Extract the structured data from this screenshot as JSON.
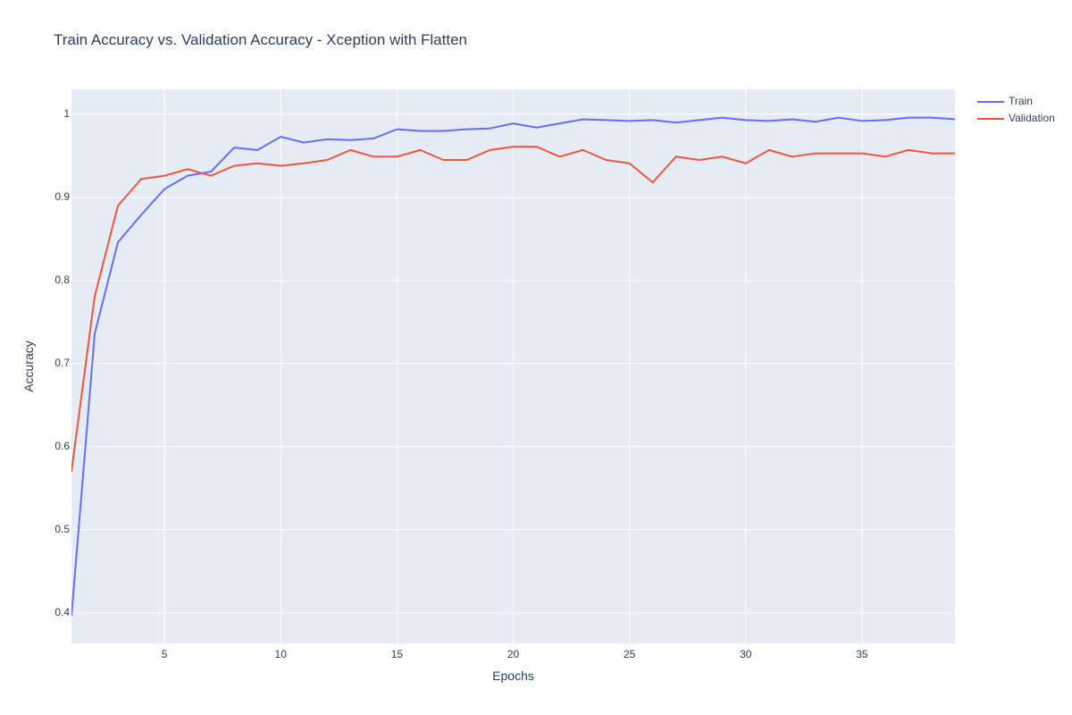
{
  "chart_data": {
    "type": "line",
    "title": "Train Accuracy vs. Validation Accuracy - Xception with Flatten",
    "xlabel": "Epochs",
    "ylabel": "Accuracy",
    "xlim": [
      1,
      39
    ],
    "ylim": [
      0.363,
      1.03
    ],
    "xticks": [
      5,
      10,
      15,
      20,
      25,
      30,
      35
    ],
    "yticks": [
      0.4,
      0.5,
      0.6,
      0.7,
      0.8,
      0.9,
      1
    ],
    "ytick_labels": [
      "0.4",
      "0.5",
      "0.6",
      "0.7",
      "0.8",
      "0.9",
      "1"
    ],
    "grid": true,
    "legend_position": "top-right",
    "x": [
      1,
      2,
      3,
      4,
      5,
      6,
      7,
      8,
      9,
      10,
      11,
      12,
      13,
      14,
      15,
      16,
      17,
      18,
      19,
      20,
      21,
      22,
      23,
      24,
      25,
      26,
      27,
      28,
      29,
      30,
      31,
      32,
      33,
      34,
      35,
      36,
      37,
      38,
      39
    ],
    "series": [
      {
        "name": "Train",
        "color": "#636efa",
        "values": [
          0.396,
          0.736,
          0.846,
          0.879,
          0.91,
          0.926,
          0.931,
          0.96,
          0.957,
          0.973,
          0.966,
          0.97,
          0.969,
          0.971,
          0.982,
          0.98,
          0.98,
          0.982,
          0.983,
          0.989,
          0.984,
          0.989,
          0.994,
          0.993,
          0.992,
          0.993,
          0.99,
          0.993,
          0.996,
          0.993,
          0.992,
          0.994,
          0.991,
          0.996,
          0.992,
          0.993,
          0.996,
          0.996,
          0.994
        ]
      },
      {
        "name": "Validation",
        "color": "#ef553b",
        "values": [
          0.57,
          0.781,
          0.89,
          0.922,
          0.926,
          0.934,
          0.926,
          0.938,
          0.941,
          0.938,
          0.941,
          0.945,
          0.957,
          0.949,
          0.949,
          0.957,
          0.945,
          0.945,
          0.957,
          0.961,
          0.961,
          0.949,
          0.957,
          0.945,
          0.941,
          0.918,
          0.949,
          0.945,
          0.949,
          0.941,
          0.957,
          0.949,
          0.953,
          0.953,
          0.953,
          0.949,
          0.957,
          0.953,
          0.953
        ]
      }
    ]
  },
  "colors": {
    "plot_background": "#e5ecf6",
    "grid": "#ffffff",
    "text": "#2a3f5f"
  }
}
